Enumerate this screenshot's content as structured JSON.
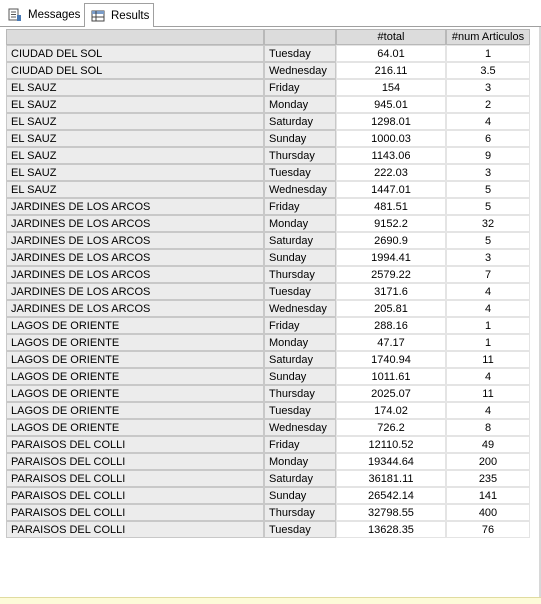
{
  "tabs": [
    {
      "label": "Messages",
      "icon": "messages-icon"
    },
    {
      "label": "Results",
      "icon": "grid-icon"
    }
  ],
  "grid": {
    "columns": [
      "",
      "",
      "#total",
      "#num Articulos"
    ],
    "rows": [
      [
        "CIUDAD DEL SOL",
        "Tuesday",
        "64.01",
        "1"
      ],
      [
        "CIUDAD DEL SOL",
        "Wednesday",
        "216.11",
        "3.5"
      ],
      [
        "EL SAUZ",
        "Friday",
        "154",
        "3"
      ],
      [
        "EL SAUZ",
        "Monday",
        "945.01",
        "2"
      ],
      [
        "EL SAUZ",
        "Saturday",
        "1298.01",
        "4"
      ],
      [
        "EL SAUZ",
        "Sunday",
        "1000.03",
        "6"
      ],
      [
        "EL SAUZ",
        "Thursday",
        "1143.06",
        "9"
      ],
      [
        "EL SAUZ",
        "Tuesday",
        "222.03",
        "3"
      ],
      [
        "EL SAUZ",
        "Wednesday",
        "1447.01",
        "5"
      ],
      [
        "JARDINES DE LOS ARCOS",
        "Friday",
        "481.51",
        "5"
      ],
      [
        "JARDINES DE LOS ARCOS",
        "Monday",
        "9152.2",
        "32"
      ],
      [
        "JARDINES DE LOS ARCOS",
        "Saturday",
        "2690.9",
        "5"
      ],
      [
        "JARDINES DE LOS ARCOS",
        "Sunday",
        "1994.41",
        "3"
      ],
      [
        "JARDINES DE LOS ARCOS",
        "Thursday",
        "2579.22",
        "7"
      ],
      [
        "JARDINES DE LOS ARCOS",
        "Tuesday",
        "3171.6",
        "4"
      ],
      [
        "JARDINES DE LOS ARCOS",
        "Wednesday",
        "205.81",
        "4"
      ],
      [
        "LAGOS DE ORIENTE",
        "Friday",
        "288.16",
        "1"
      ],
      [
        "LAGOS DE ORIENTE",
        "Monday",
        "47.17",
        "1"
      ],
      [
        "LAGOS DE ORIENTE",
        "Saturday",
        "1740.94",
        "11"
      ],
      [
        "LAGOS DE ORIENTE",
        "Sunday",
        "1011.61",
        "4"
      ],
      [
        "LAGOS DE ORIENTE",
        "Thursday",
        "2025.07",
        "11"
      ],
      [
        "LAGOS DE ORIENTE",
        "Tuesday",
        "174.02",
        "4"
      ],
      [
        "LAGOS DE ORIENTE",
        "Wednesday",
        "726.2",
        "8"
      ],
      [
        "PARAISOS DEL COLLI",
        "Friday",
        "12110.52",
        "49"
      ],
      [
        "PARAISOS DEL COLLI",
        "Monday",
        "19344.64",
        "200"
      ],
      [
        "PARAISOS DEL COLLI",
        "Saturday",
        "36181.11",
        "235"
      ],
      [
        "PARAISOS DEL COLLI",
        "Sunday",
        "26542.14",
        "141"
      ],
      [
        "PARAISOS DEL COLLI",
        "Thursday",
        "32798.55",
        "400"
      ],
      [
        "PARAISOS DEL COLLI",
        "Tuesday",
        "13628.35",
        "76"
      ]
    ]
  }
}
